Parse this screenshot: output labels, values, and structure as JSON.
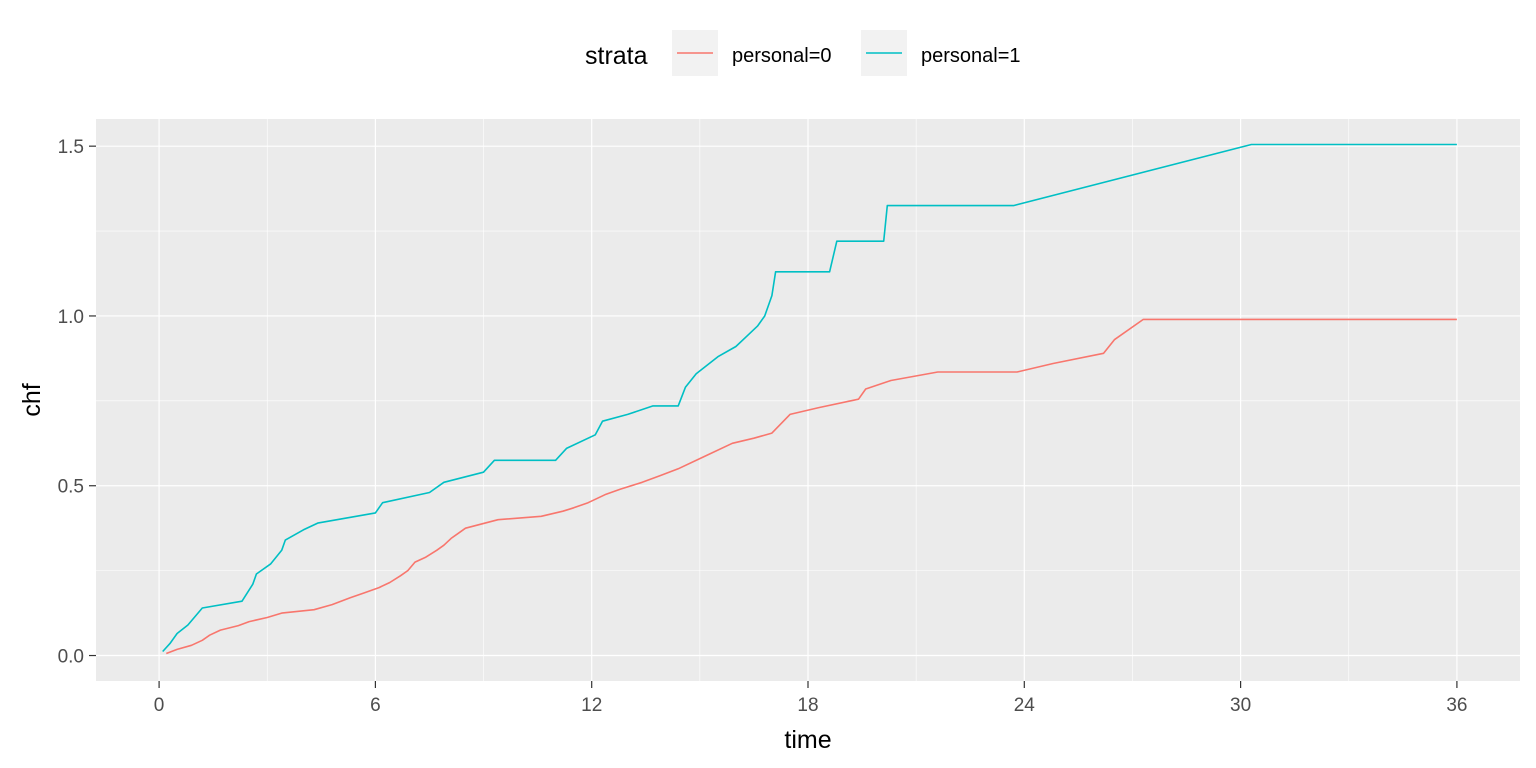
{
  "chart_data": {
    "type": "line",
    "step": true,
    "title": "",
    "xlabel": "time",
    "ylabel": "chf",
    "xlim": [
      -1.75,
      37.75
    ],
    "ylim": [
      -0.075,
      1.58
    ],
    "xticks": [
      0,
      6,
      12,
      18,
      24,
      30,
      36
    ],
    "xtick_labels": [
      "0",
      "6",
      "12",
      "18",
      "24",
      "30",
      "36"
    ],
    "yticks": [
      0.0,
      0.5,
      1.0,
      1.5
    ],
    "ytick_labels": [
      "0.0",
      "0.5",
      "1.0",
      "1.5"
    ],
    "grid": true,
    "legend": {
      "title": "strata",
      "position": "top"
    },
    "series": [
      {
        "name": "personal=0",
        "color": "#F8766D",
        "points": [
          [
            0.2,
            0.006
          ],
          [
            0.5,
            0.018
          ],
          [
            0.9,
            0.03
          ],
          [
            1.2,
            0.045
          ],
          [
            1.4,
            0.06
          ],
          [
            1.7,
            0.075
          ],
          [
            2.2,
            0.088
          ],
          [
            2.5,
            0.1
          ],
          [
            3.0,
            0.112
          ],
          [
            3.4,
            0.125
          ],
          [
            4.3,
            0.135
          ],
          [
            4.8,
            0.15
          ],
          [
            5.3,
            0.17
          ],
          [
            5.7,
            0.185
          ],
          [
            6.1,
            0.2
          ],
          [
            6.4,
            0.215
          ],
          [
            6.7,
            0.235
          ],
          [
            6.9,
            0.25
          ],
          [
            7.1,
            0.275
          ],
          [
            7.4,
            0.29
          ],
          [
            7.7,
            0.31
          ],
          [
            7.9,
            0.325
          ],
          [
            8.1,
            0.345
          ],
          [
            8.3,
            0.36
          ],
          [
            8.5,
            0.375
          ],
          [
            9.4,
            0.4
          ],
          [
            10.6,
            0.41
          ],
          [
            11.2,
            0.425
          ],
          [
            11.5,
            0.435
          ],
          [
            11.9,
            0.45
          ],
          [
            12.4,
            0.475
          ],
          [
            12.8,
            0.49
          ],
          [
            13.4,
            0.51
          ],
          [
            13.9,
            0.53
          ],
          [
            14.4,
            0.55
          ],
          [
            15.1,
            0.585
          ],
          [
            15.9,
            0.625
          ],
          [
            16.5,
            0.64
          ],
          [
            17.0,
            0.655
          ],
          [
            17.5,
            0.71
          ],
          [
            18.3,
            0.73
          ],
          [
            19.4,
            0.755
          ],
          [
            19.6,
            0.785
          ],
          [
            20.3,
            0.81
          ],
          [
            21.6,
            0.835
          ],
          [
            23.8,
            0.835
          ],
          [
            24.8,
            0.86
          ],
          [
            26.2,
            0.89
          ],
          [
            26.5,
            0.93
          ],
          [
            27.3,
            0.99
          ],
          [
            36.0,
            0.99
          ]
        ]
      },
      {
        "name": "personal=1",
        "color": "#00BFC4",
        "points": [
          [
            0.1,
            0.012
          ],
          [
            0.3,
            0.035
          ],
          [
            0.5,
            0.065
          ],
          [
            0.8,
            0.09
          ],
          [
            1.0,
            0.115
          ],
          [
            1.2,
            0.14
          ],
          [
            2.3,
            0.16
          ],
          [
            2.6,
            0.21
          ],
          [
            2.7,
            0.24
          ],
          [
            3.1,
            0.27
          ],
          [
            3.4,
            0.31
          ],
          [
            3.5,
            0.34
          ],
          [
            4.0,
            0.37
          ],
          [
            4.4,
            0.39
          ],
          [
            6.0,
            0.42
          ],
          [
            6.2,
            0.45
          ],
          [
            7.5,
            0.48
          ],
          [
            7.9,
            0.51
          ],
          [
            9.0,
            0.54
          ],
          [
            9.3,
            0.575
          ],
          [
            11.0,
            0.575
          ],
          [
            11.3,
            0.61
          ],
          [
            12.1,
            0.65
          ],
          [
            12.3,
            0.69
          ],
          [
            13.0,
            0.71
          ],
          [
            13.7,
            0.735
          ],
          [
            14.4,
            0.735
          ],
          [
            14.6,
            0.79
          ],
          [
            14.9,
            0.83
          ],
          [
            15.5,
            0.88
          ],
          [
            16.0,
            0.91
          ],
          [
            16.3,
            0.94
          ],
          [
            16.6,
            0.97
          ],
          [
            16.8,
            1.0
          ],
          [
            17.0,
            1.06
          ],
          [
            17.1,
            1.13
          ],
          [
            18.6,
            1.13
          ],
          [
            18.8,
            1.22
          ],
          [
            20.1,
            1.22
          ],
          [
            20.2,
            1.325
          ],
          [
            23.7,
            1.325
          ],
          [
            30.3,
            1.505
          ],
          [
            36.0,
            1.505
          ]
        ]
      }
    ]
  }
}
